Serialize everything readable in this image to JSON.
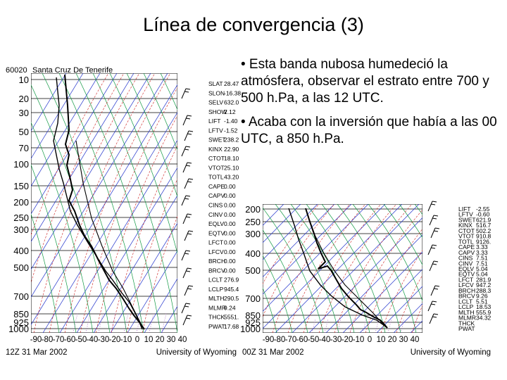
{
  "slide": {
    "title": "Línea de convergencia (3)",
    "bullets": [
      "• Esta banda nubosa humedeció la atmósfera, observar el estrato entre 700 y 500 h.Pa, a las 12 UTC.",
      "• Acaba con la inversión que había a las 00 UTC, a 850 h.Pa."
    ]
  },
  "sounding_12z": {
    "station_id": "60020",
    "station_name": "Santa Cruz De Tenerife",
    "pressure_labels": [
      "10",
      "20",
      "30",
      "50",
      "70",
      "100",
      "150",
      "200",
      "250",
      "300",
      "400",
      "500",
      "700",
      "850",
      "925",
      "1000"
    ],
    "temperature_labels": [
      "-90",
      "-80",
      "-70",
      "-60",
      "-50",
      "-40",
      "-30",
      "-20",
      "-10",
      "0",
      "10",
      "20",
      "30",
      "40"
    ],
    "date": "12Z 31 Mar 2002",
    "source": "University of Wyoming",
    "index_labels": [
      "SLAT",
      "SLON",
      "SELV",
      "SHOW",
      "LIFT",
      "LFTV",
      "SWET",
      "KINX",
      "CTOT",
      "VTOT",
      "TOTL",
      "CAPE",
      "CAPV",
      "CINS",
      "CINV",
      "EQLV",
      "EQTV",
      "LFCT",
      "LFCV",
      "BRCH",
      "BRCV",
      "LCLT",
      "LCLP",
      "MLTH",
      "MLMR",
      "THCK",
      "PWAT"
    ],
    "index_values": [
      "28.47",
      "-16.38",
      "632.0",
      "2.12",
      "-1.40",
      "-1.52",
      "238.2",
      "22.90",
      "18.10",
      "25.10",
      "43.20",
      "0.00",
      "0.00",
      "0.00",
      "0.00",
      "0.00",
      "0.00",
      "0.00",
      "0.00",
      "0.00",
      "0.00",
      "276.9",
      "945.4",
      "290.5",
      "9.24",
      "5551.",
      "17.68"
    ]
  },
  "sounding_00z": {
    "pressure_labels": [
      "200",
      "250",
      "300",
      "400",
      "500",
      "700",
      "850",
      "925",
      "1000"
    ],
    "temperature_labels": [
      "-90",
      "-80",
      "-70",
      "-60",
      "-50",
      "-40",
      "-30",
      "-20",
      "-10",
      "0",
      "10",
      "20",
      "30",
      "40"
    ],
    "date": "00Z 31 Mar 2002",
    "source": "University of Wyoming",
    "index_labels": [
      "LIFT",
      "LFTV",
      "SWET",
      "KINX",
      "CTOT",
      "VTOT",
      "TOTL",
      "CAPE",
      "CAPV",
      "CINS",
      "CINV",
      "EQLV",
      "EQTV",
      "LFCT",
      "LFCV",
      "BRCH",
      "BRCV",
      "LCLT",
      "LCLP",
      "MLTH",
      "MLMR",
      "THCK",
      "PWAT"
    ],
    "index_values": [
      "-2.55",
      "-0.60",
      "621.9",
      "516.7",
      "502.2",
      "910.8",
      "9126.",
      "3.33",
      "3.33",
      "7.51",
      "7.51",
      "5.04",
      "5.04",
      "281.9",
      "947.2",
      "288.3",
      "9.26",
      "5.51",
      "18.53",
      "555.9",
      "34.32",
      "",
      ""
    ]
  }
}
